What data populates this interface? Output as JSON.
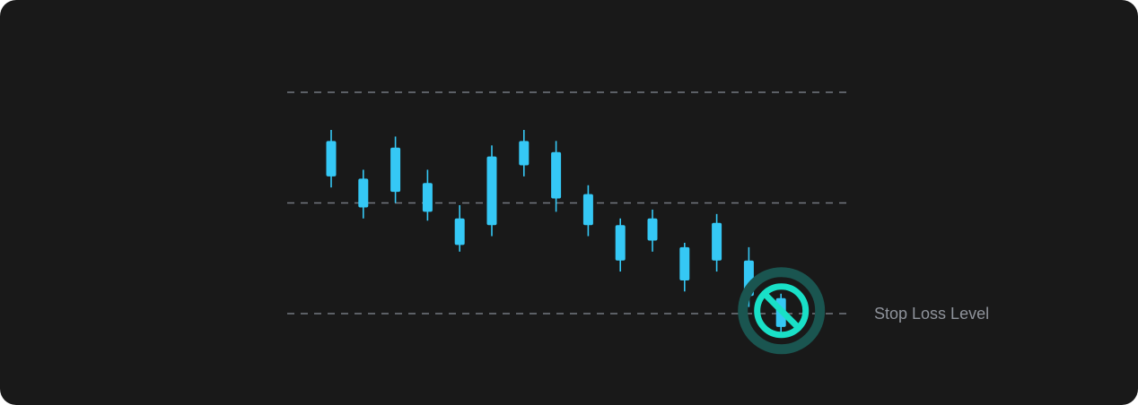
{
  "chart_data": {
    "type": "candlestick",
    "levels": [
      {
        "price": 100,
        "label": ""
      },
      {
        "price": 50,
        "label": ""
      },
      {
        "price": 0,
        "label": "Stop Loss Level"
      }
    ],
    "candles": [
      {
        "open": 62,
        "close": 78,
        "high": 83,
        "low": 57
      },
      {
        "open": 48,
        "close": 61,
        "high": 65,
        "low": 43
      },
      {
        "open": 55,
        "close": 75,
        "high": 80,
        "low": 50
      },
      {
        "open": 46,
        "close": 59,
        "high": 65,
        "low": 42
      },
      {
        "open": 31,
        "close": 43,
        "high": 49,
        "low": 28
      },
      {
        "open": 40,
        "close": 71,
        "high": 76,
        "low": 35
      },
      {
        "open": 67,
        "close": 78,
        "high": 83,
        "low": 62
      },
      {
        "open": 52,
        "close": 73,
        "high": 78,
        "low": 46
      },
      {
        "open": 40,
        "close": 54,
        "high": 58,
        "low": 35
      },
      {
        "open": 24,
        "close": 40,
        "high": 43,
        "low": 19
      },
      {
        "open": 33,
        "close": 43,
        "high": 47,
        "low": 28
      },
      {
        "open": 15,
        "close": 30,
        "high": 32,
        "low": 10
      },
      {
        "open": 24,
        "close": 41,
        "high": 45,
        "low": 19
      },
      {
        "open": 8,
        "close": 24,
        "high": 30,
        "low": 3
      },
      {
        "open": -6,
        "close": 7,
        "high": 9,
        "low": -9
      }
    ],
    "stop_hit_index": 14,
    "colors": {
      "background": "#191919",
      "candle": "#35c8f5",
      "grid": "#737880",
      "stop_icon": "#19e0c7",
      "stop_halo": "#1a5550",
      "label": "#8f939b"
    },
    "icon": "no-entry-icon"
  }
}
